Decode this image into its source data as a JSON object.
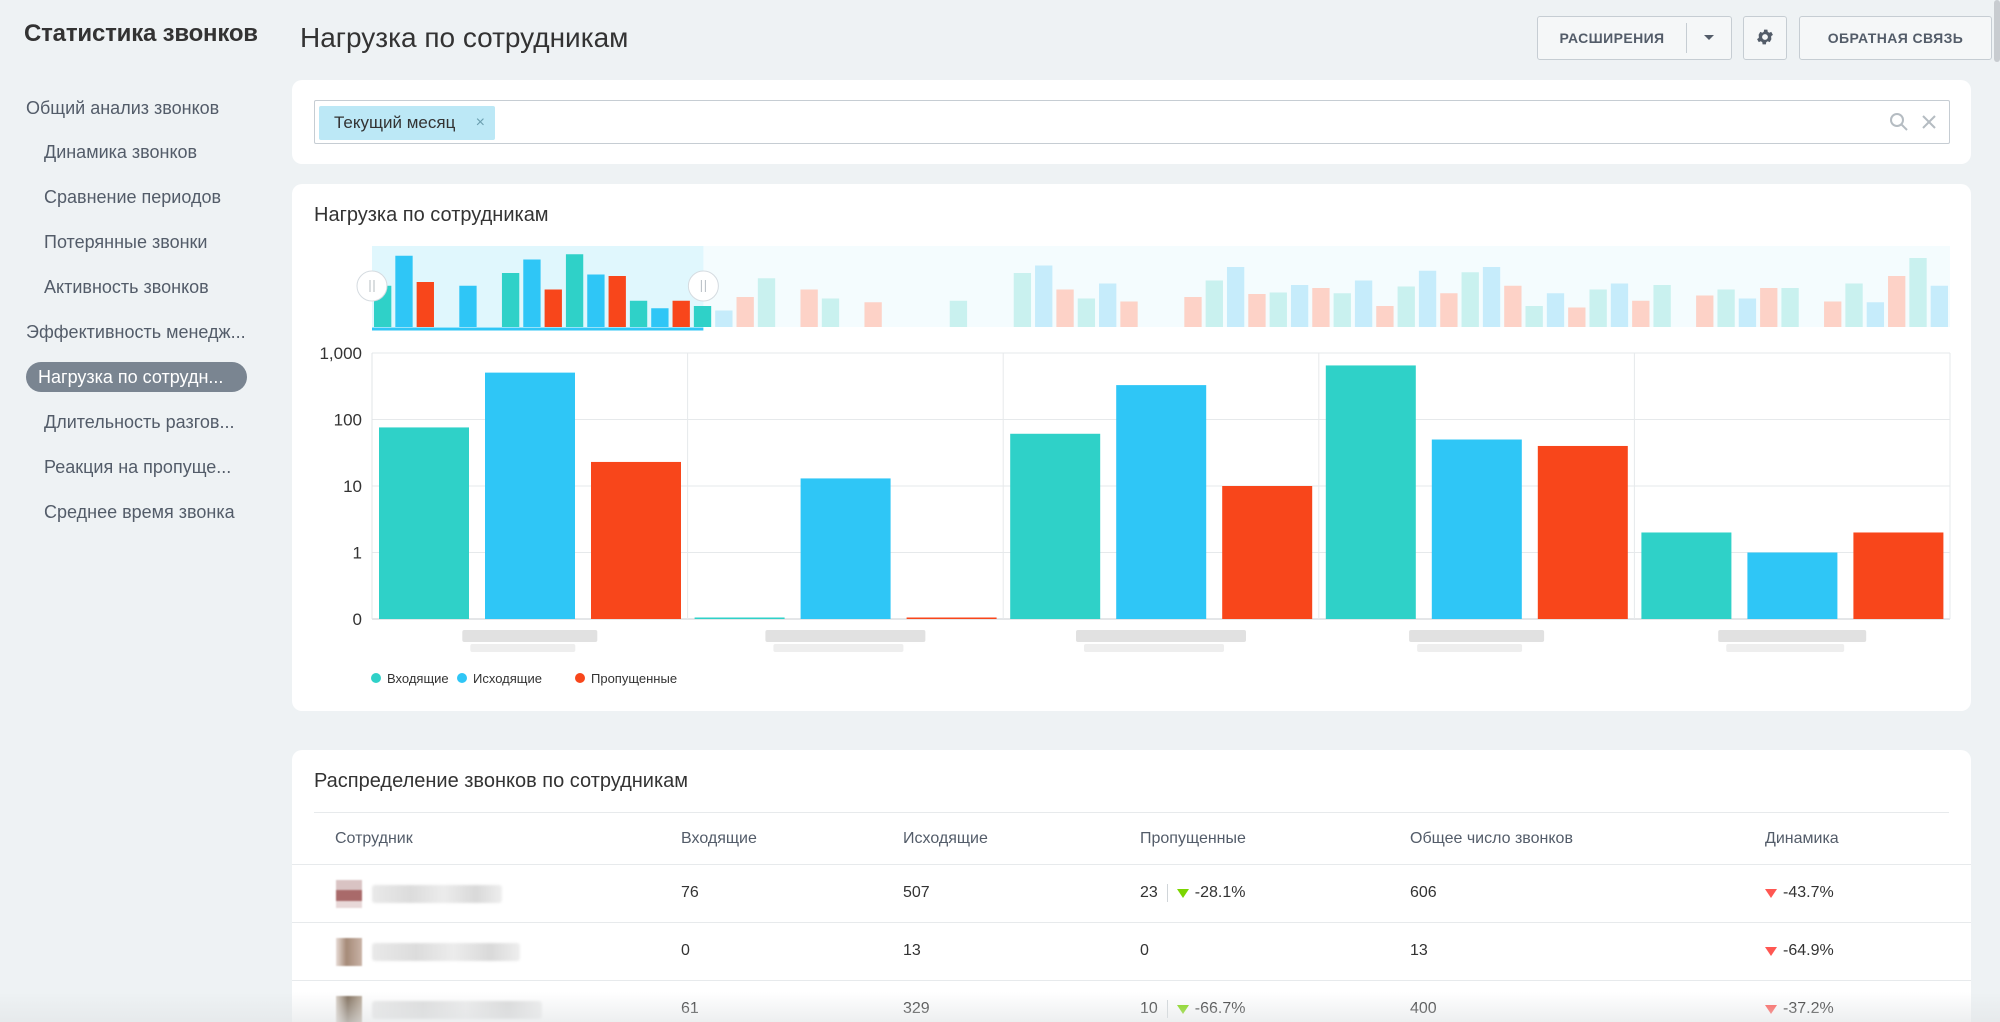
{
  "sidebar": {
    "title": "Статистика звонков",
    "groups": [
      {
        "label": "Общий анализ звонков",
        "items": [
          "Динамика звонков",
          "Сравнение периодов",
          "Потерянные звонки",
          "Активность звонков"
        ]
      },
      {
        "label": "Эффективность менедж...",
        "active": "Нагрузка по сотрудн...",
        "items": [
          "Длительность разгов...",
          "Реакция на пропуще...",
          "Среднее время звонка"
        ]
      }
    ]
  },
  "header": {
    "title": "Нагрузка по сотрудникам",
    "extensions_label": "РАСШИРЕНИЯ",
    "feedback_label": "ОБРАТНАЯ СВЯЗЬ"
  },
  "filter": {
    "chip": "Текущий месяц",
    "chip_remove": "×"
  },
  "chart_section": {
    "title": "Нагрузка по сотрудникам"
  },
  "chart_data": {
    "type": "bar",
    "title": "Нагрузка по сотрудникам",
    "yscale": "log",
    "ylim": [
      0,
      1000
    ],
    "yticks": [
      "0",
      "1",
      "10",
      "100",
      "1,000"
    ],
    "categories": [
      "",
      "",
      "",
      "",
      ""
    ],
    "series": [
      {
        "name": "Входящие",
        "color": "#2fd1c8",
        "values": [
          76,
          0,
          61,
          650,
          2
        ]
      },
      {
        "name": "Исходящие",
        "color": "#2fc6f6",
        "values": [
          507,
          13,
          329,
          50,
          1
        ]
      },
      {
        "name": "Пропущенные",
        "color": "#f8461b",
        "values": [
          23,
          0,
          10,
          40,
          2
        ]
      }
    ],
    "legend_position": "bottom-left",
    "grid": true,
    "navigator": {
      "values": [
        0.55,
        0.95,
        0.6,
        0,
        0.55,
        0,
        0.72,
        0.9,
        0.5,
        0.97,
        0.7,
        0.68,
        0.35,
        0.25,
        0.35,
        0.28,
        0.22,
        0.4,
        0.65,
        0,
        0.5,
        0.38,
        0,
        0.33,
        0,
        0,
        0,
        0.35,
        0,
        0,
        0.72,
        0.82,
        0.5,
        0.38,
        0.58,
        0.34,
        0,
        0,
        0.4,
        0.62,
        0.8,
        0.44,
        0.46,
        0.56,
        0.52,
        0.45,
        0.62,
        0.28,
        0.54,
        0.75,
        0.45,
        0.73,
        0.8,
        0.55,
        0.28,
        0.45,
        0.26,
        0.5,
        0.58,
        0.35,
        0.56,
        0,
        0.42,
        0.5,
        0.38,
        0.52,
        0.52,
        0,
        0.34,
        0.58,
        0.33,
        0.68,
        0.92,
        0.55
      ],
      "selection_fraction": [
        0,
        0.21
      ]
    }
  },
  "table": {
    "title": "Распределение звонков по сотрудникам",
    "columns": [
      "Сотрудник",
      "Входящие",
      "Исходящие",
      "Пропущенные",
      "Общее число звонков",
      "Динамика"
    ],
    "rows": [
      {
        "incoming": "76",
        "outgoing": "507",
        "missed": "23",
        "missed_change": "-28.1%",
        "total": "606",
        "dynamics": "-43.7%"
      },
      {
        "incoming": "0",
        "outgoing": "13",
        "missed": "0",
        "missed_change": "",
        "total": "13",
        "dynamics": "-64.9%"
      },
      {
        "incoming": "61",
        "outgoing": "329",
        "missed": "10",
        "missed_change": "-66.7%",
        "total": "400",
        "dynamics": "-37.2%"
      }
    ]
  },
  "colors": {
    "accent": "#2fc6f6",
    "incoming": "#2fd1c8",
    "missed": "#f8461b",
    "active_nav": "#7a8591"
  }
}
